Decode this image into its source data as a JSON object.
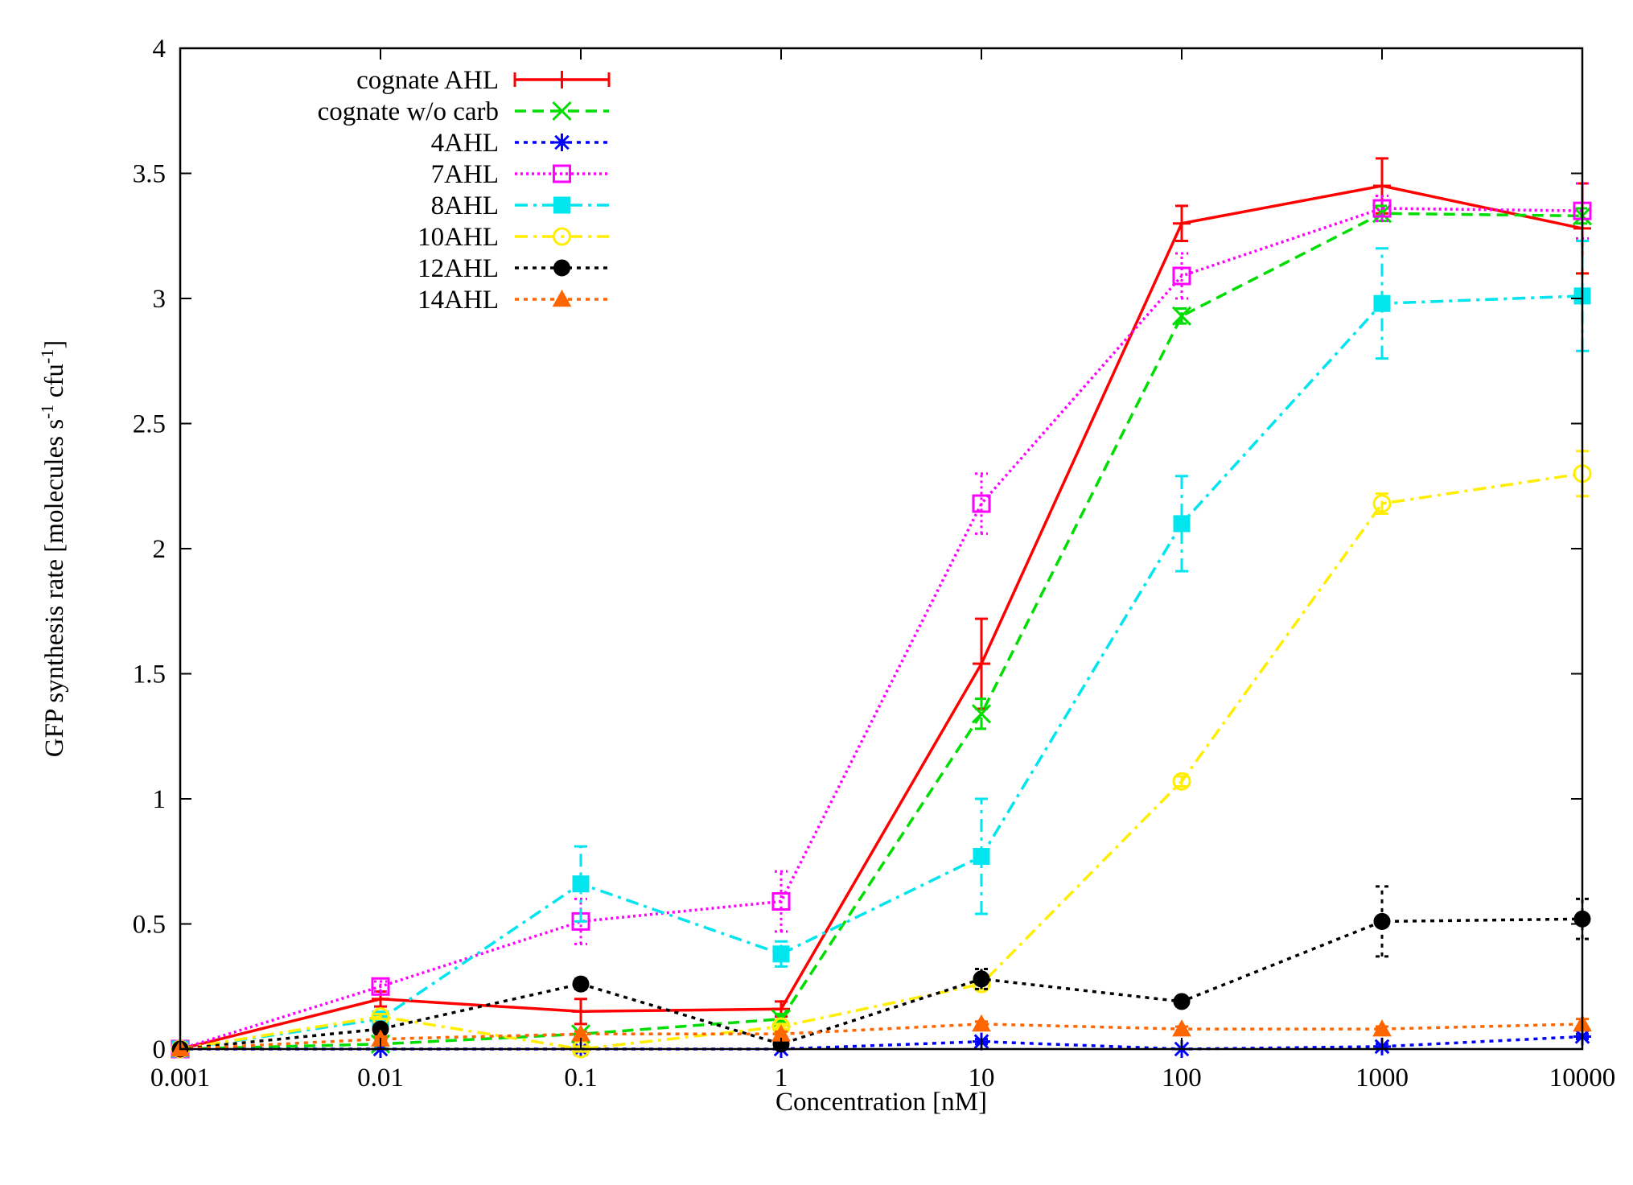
{
  "chart_data": {
    "type": "line",
    "title": "",
    "xlabel": "Concentration [nM]",
    "ylabel": {
      "parts": [
        "GFP synthesis rate [molecules s",
        "-1",
        " cfu",
        "-1",
        "]"
      ]
    },
    "x_scale": "log",
    "xlim": [
      0.001,
      10000
    ],
    "ylim": [
      0,
      4
    ],
    "x_ticks": [
      0.001,
      0.01,
      0.1,
      1,
      10,
      100,
      1000,
      10000
    ],
    "x_tick_labels": [
      "0.001",
      "0.01",
      "0.1",
      "1",
      "10",
      "100",
      "1000",
      "10000"
    ],
    "y_ticks": [
      0,
      0.5,
      1,
      1.5,
      2,
      2.5,
      3,
      3.5,
      4
    ],
    "y_tick_labels": [
      "0",
      "0.5",
      "1",
      "1.5",
      "2",
      "2.5",
      "3",
      "3.5",
      "4"
    ],
    "grid": false,
    "legend_position": "top-left",
    "x": [
      0.001,
      0.01,
      0.1,
      1,
      10,
      100,
      1000,
      10000
    ],
    "series": [
      {
        "name": "cognate AHL",
        "color": "#ff0000",
        "dash": "solid",
        "marker": "plus",
        "values": [
          0,
          0.2,
          0.15,
          0.16,
          1.54,
          3.3,
          3.45,
          3.28
        ],
        "errors": [
          0,
          0.03,
          0.05,
          0.03,
          0.18,
          0.07,
          0.11,
          0.18
        ]
      },
      {
        "name": "cognate w/o carb",
        "color": "#00dd00",
        "dash": "dashed",
        "marker": "cross",
        "values": [
          0,
          0.02,
          0.06,
          0.12,
          1.34,
          2.93,
          3.34,
          3.33
        ],
        "errors": [
          0,
          0.01,
          0.01,
          0.02,
          0.06,
          0.03,
          0.03,
          0.03
        ]
      },
      {
        "name": "4AHL",
        "color": "#0000ff",
        "dash": "dotted",
        "marker": "star",
        "values": [
          0,
          0,
          0,
          0,
          0.03,
          0,
          0.01,
          0.05
        ],
        "errors": [
          0,
          0,
          0,
          0,
          0.01,
          0,
          0.01,
          0.01
        ]
      },
      {
        "name": "7AHL",
        "color": "#ff00ff",
        "dash": "dotted-fine",
        "marker": "open-square",
        "values": [
          0,
          0.25,
          0.51,
          0.59,
          2.18,
          3.09,
          3.36,
          3.35
        ],
        "errors": [
          0,
          0.02,
          0.09,
          0.12,
          0.12,
          0.09,
          0.05,
          0.11
        ]
      },
      {
        "name": "8AHL",
        "color": "#00e5ee",
        "dash": "dash-dot",
        "marker": "filled-square",
        "values": [
          0,
          0.12,
          0.66,
          0.38,
          0.77,
          2.1,
          2.98,
          3.01
        ],
        "errors": [
          0,
          0.02,
          0.15,
          0.05,
          0.23,
          0.19,
          0.22,
          0.22
        ]
      },
      {
        "name": "10AHL",
        "color": "#ffee00",
        "dash": "dash-dot",
        "marker": "open-circle",
        "values": [
          0,
          0.13,
          0,
          0.09,
          0.26,
          1.07,
          2.18,
          2.3
        ],
        "errors": [
          0,
          0.01,
          0.01,
          0.01,
          0.02,
          0.02,
          0.04,
          0.09
        ]
      },
      {
        "name": "12AHL",
        "color": "#000000",
        "dash": "dotted",
        "marker": "filled-circle",
        "values": [
          0,
          0.08,
          0.26,
          0.02,
          0.28,
          0.19,
          0.51,
          0.52
        ],
        "errors": [
          0,
          0.01,
          0.02,
          0.01,
          0.04,
          0.01,
          0.14,
          0.08
        ]
      },
      {
        "name": "14AHL",
        "color": "#ff6600",
        "dash": "dotted",
        "marker": "filled-triangle",
        "values": [
          0,
          0.04,
          0.06,
          0.06,
          0.1,
          0.08,
          0.08,
          0.1
        ],
        "errors": [
          0,
          0.01,
          0.01,
          0.01,
          0.01,
          0.01,
          0.01,
          0.02
        ]
      }
    ]
  }
}
